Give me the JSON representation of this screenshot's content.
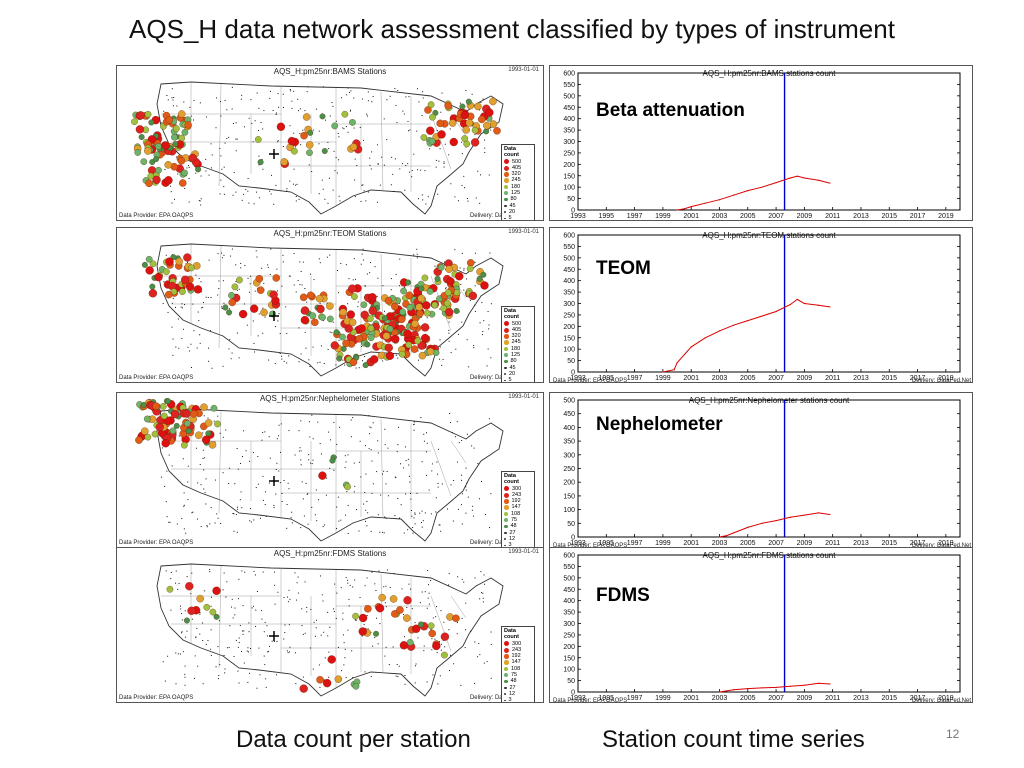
{
  "title": "AQS_H data network assessment classified by types of instrument",
  "bottom_labels": {
    "left": "Data count per station",
    "right": "Station count time series"
  },
  "page_number": "12",
  "colors": {
    "series_line": "#dd0000",
    "marker_line": "#0000cc",
    "axis": "#000000"
  },
  "maps": [
    {
      "title": "AQS_H:pm25nr:BAMS  Stations",
      "date": "1993-01-01",
      "provider": "Data Provider: EPA OAQPS",
      "delivery": "Delivery: DataFed.Net",
      "legend_title": "Data count",
      "legend": [
        "500",
        "405",
        "320",
        "245",
        "180",
        "125",
        "80",
        "45",
        "20",
        "5"
      ]
    },
    {
      "title": "AQS_H:pm25nr:TEOM  Stations",
      "date": "1993-01-01",
      "provider": "Data Provider: EPA OAQPS",
      "delivery": "Delivery: DataFed.Net",
      "legend_title": "Data count",
      "legend": [
        "500",
        "405",
        "320",
        "245",
        "180",
        "125",
        "80",
        "45",
        "20",
        "5"
      ]
    },
    {
      "title": "AQS_H:pm25nr:Nephelometer  Stations",
      "date": "1993-01-01",
      "provider": "Data Provider: EPA OAQPS",
      "delivery": "Delivery: DataFed.Net",
      "legend_title": "Data count",
      "legend": [
        "300",
        "243",
        "192",
        "147",
        "108",
        "75",
        "48",
        "27",
        "12",
        "3"
      ]
    },
    {
      "title": "AQS_H:pm25nr:FDMS  Stations",
      "date": "1993-01-01",
      "provider": "Data Provider: EPA OAQPS",
      "delivery": "Delivery: DataFed.Net",
      "legend_title": "Data count",
      "legend": [
        "300",
        "243",
        "192",
        "147",
        "108",
        "75",
        "48",
        "27",
        "12",
        "3"
      ]
    }
  ],
  "chart_data": [
    {
      "type": "line",
      "title": "AQS_H:pm25nr:BAMS  stations  count",
      "label": "Beta attenuation",
      "provider": "",
      "delivery": "",
      "ylim": [
        0,
        600
      ],
      "yticks": [
        0,
        50,
        100,
        150,
        200,
        250,
        300,
        350,
        400,
        450,
        500,
        550,
        600
      ],
      "xlim": [
        1993,
        2020
      ],
      "xticks": [
        1993,
        1995,
        1997,
        1999,
        2001,
        2003,
        2005,
        2007,
        2009,
        2011,
        2013,
        2015,
        2017,
        2019
      ],
      "marker_x": 2007.6,
      "series": [
        {
          "x": [
            2000.0,
            2000.5,
            2001,
            2002,
            2003,
            2004,
            2005,
            2006,
            2007,
            2008,
            2008.5,
            2009,
            2010,
            2010.8
          ],
          "y": [
            0,
            5,
            15,
            30,
            45,
            65,
            85,
            100,
            120,
            140,
            148,
            140,
            130,
            118
          ]
        }
      ]
    },
    {
      "type": "line",
      "title": "AQS_H:pm25nr:TEOM  stations  count",
      "label": "TEOM",
      "provider": "Data Provider: EPA OAQPS",
      "delivery": "Delivery: DataFed.Net",
      "ylim": [
        0,
        600
      ],
      "yticks": [
        0,
        50,
        100,
        150,
        200,
        250,
        300,
        350,
        400,
        450,
        500,
        550,
        600
      ],
      "xlim": [
        1993,
        2020
      ],
      "xticks": [
        1993,
        1995,
        1997,
        1999,
        2001,
        2003,
        2005,
        2007,
        2009,
        2011,
        2013,
        2015,
        2017,
        2019
      ],
      "marker_x": 2007.6,
      "series": [
        {
          "x": [
            1999.0,
            1999.8,
            2000,
            2001,
            2002,
            2003,
            2004,
            2005,
            2006,
            2007,
            2008,
            2008.5,
            2009,
            2010,
            2010.8
          ],
          "y": [
            0,
            10,
            40,
            110,
            150,
            180,
            205,
            225,
            245,
            265,
            295,
            318,
            300,
            292,
            285
          ]
        }
      ]
    },
    {
      "type": "line",
      "title": "AQS_H:pm25nr:Nephelometer  stations  count",
      "label": "Nephelometer",
      "provider": "Data Provider: EPA OAQPS",
      "delivery": "Delivery: DataFed.Net",
      "ylim": [
        0,
        500
      ],
      "yticks": [
        0,
        50,
        100,
        150,
        200,
        250,
        300,
        350,
        400,
        450,
        500
      ],
      "xlim": [
        1993,
        2020
      ],
      "xticks": [
        1993,
        1995,
        1997,
        1999,
        2001,
        2003,
        2005,
        2007,
        2009,
        2011,
        2013,
        2015,
        2017,
        2019
      ],
      "marker_x": 2007.6,
      "series": [
        {
          "x": [
            2003.0,
            2003.5,
            2004,
            2005,
            2006,
            2007,
            2008,
            2009,
            2010,
            2010.8
          ],
          "y": [
            0,
            5,
            15,
            35,
            50,
            60,
            72,
            80,
            88,
            82
          ]
        }
      ]
    },
    {
      "type": "line",
      "title": "AQS_H:pm25nr:FDMS  stations  count",
      "label": "FDMS",
      "provider": "Data Provider: EPA OAQPS",
      "delivery": "Delivery: DataFed.Net",
      "ylim": [
        0,
        600
      ],
      "yticks": [
        0,
        50,
        100,
        150,
        200,
        250,
        300,
        350,
        400,
        450,
        500,
        550,
        600
      ],
      "xlim": [
        1993,
        2020
      ],
      "xticks": [
        1993,
        1995,
        1997,
        1999,
        2001,
        2003,
        2005,
        2007,
        2009,
        2011,
        2013,
        2015,
        2017,
        2019
      ],
      "marker_x": 2007.6,
      "series": [
        {
          "x": [
            2003.0,
            2004,
            2005,
            2006,
            2007,
            2008,
            2009,
            2010,
            2010.8
          ],
          "y": [
            0,
            10,
            15,
            18,
            20,
            25,
            30,
            38,
            35
          ]
        }
      ]
    }
  ]
}
